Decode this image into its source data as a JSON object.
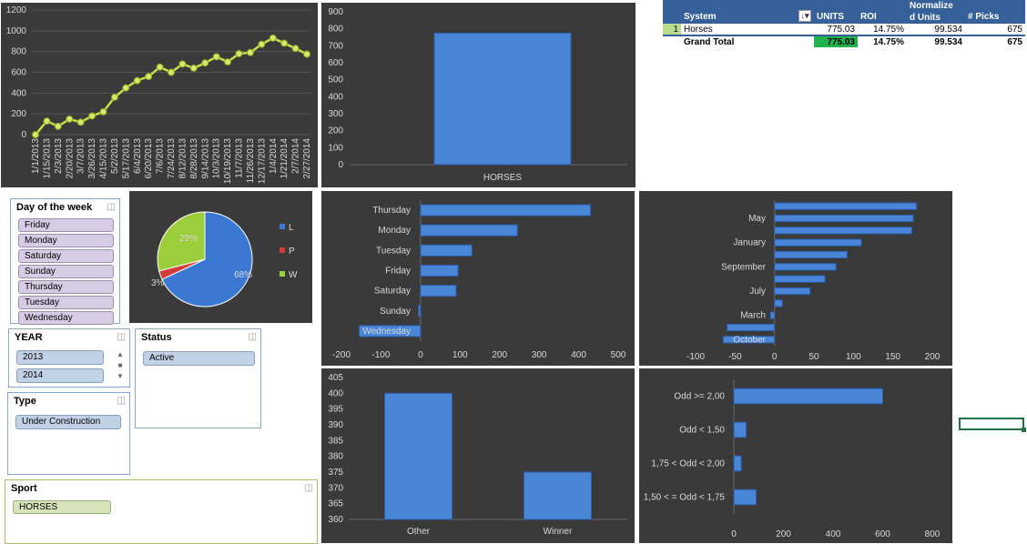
{
  "pivot": {
    "headers": {
      "system": "System",
      "units": "UNITS",
      "roi": "ROI",
      "norm_line1": "Normalize",
      "norm_line2": "d Units",
      "picks": "# Picks",
      "sort_icon": "sort-desc-icon"
    },
    "row": {
      "rank": "1",
      "system": "Horses",
      "units": "775.03",
      "roi": "14.75%",
      "norm": "99.534",
      "picks": "675"
    },
    "total": {
      "label": "Grand Total",
      "units": "775.03",
      "roi": "14.75%",
      "norm": "99.534",
      "picks": "675"
    }
  },
  "slicers": {
    "dow": {
      "title": "Day of the week",
      "items": [
        "Friday",
        "Monday",
        "Saturday",
        "Sunday",
        "Thursday",
        "Tuesday",
        "Wednesday"
      ]
    },
    "year": {
      "title": "YEAR",
      "items": [
        "2013",
        "2014"
      ]
    },
    "status": {
      "title": "Status",
      "items": [
        "Active"
      ]
    },
    "type": {
      "title": "Type",
      "items": [
        "Under Construction"
      ]
    },
    "sport": {
      "title": "Sport",
      "items": [
        "HORSES"
      ]
    }
  },
  "chart_data": [
    {
      "id": "cumulative",
      "type": "line",
      "x": [
        "1/1/2013",
        "1/15/2013",
        "2/3/2013",
        "2/20/2013",
        "3/7/2013",
        "3/26/2013",
        "4/15/2013",
        "5/2/2013",
        "5/17/2013",
        "6/4/2013",
        "6/20/2013",
        "7/6/2013",
        "7/24/2013",
        "8/12/2013",
        "8/28/2013",
        "9/14/2013",
        "10/3/2013",
        "10/19/2013",
        "11/7/2013",
        "11/26/2013",
        "12/17/2013",
        "1/4/2014",
        "1/21/2014",
        "2/7/2014",
        "2/27/2014"
      ],
      "values": [
        0,
        130,
        80,
        150,
        120,
        180,
        220,
        360,
        450,
        520,
        560,
        650,
        600,
        680,
        640,
        690,
        750,
        700,
        780,
        790,
        870,
        930,
        880,
        830,
        775
      ],
      "ylim": [
        0,
        1200
      ],
      "yticks": [
        0,
        200,
        400,
        600,
        800,
        1000,
        1200
      ]
    },
    {
      "id": "horses_bar",
      "type": "bar",
      "categories": [
        "HORSES"
      ],
      "values": [
        775.03
      ],
      "ylim": [
        0,
        900
      ],
      "yticks": [
        0,
        100,
        200,
        300,
        400,
        500,
        600,
        700,
        800,
        900
      ]
    },
    {
      "id": "result_pie",
      "type": "pie",
      "slices": [
        {
          "name": "L",
          "value": 68,
          "label": "68%",
          "color": "#3a78d2"
        },
        {
          "name": "P",
          "value": 3,
          "label": "3%",
          "color": "#d43c3c"
        },
        {
          "name": "W",
          "value": 29,
          "label": "29%",
          "color": "#9ccd3a"
        }
      ],
      "legend": "right"
    },
    {
      "id": "weekday",
      "type": "bar",
      "orientation": "horizontal",
      "categories": [
        "Thursday",
        "Monday",
        "Tuesday",
        "Friday",
        "Saturday",
        "Sunday",
        "Wednesday"
      ],
      "values": [
        430,
        245,
        130,
        95,
        90,
        -5,
        -155
      ],
      "xlim": [
        -200,
        500
      ],
      "xticks": [
        -200,
        -100,
        0,
        100,
        200,
        300,
        400,
        500
      ]
    },
    {
      "id": "month",
      "type": "bar",
      "orientation": "horizontal",
      "categories": [
        "",
        "May",
        "",
        "January",
        "",
        "September",
        "",
        "July",
        "",
        "March",
        "",
        "October"
      ],
      "values": [
        180,
        176,
        174,
        110,
        92,
        78,
        64,
        45,
        10,
        -5,
        -60,
        -65
      ],
      "xlim": [
        -100,
        200
      ],
      "xticks": [
        -100,
        -50,
        0,
        50,
        100,
        150,
        200
      ]
    },
    {
      "id": "outcome",
      "type": "bar",
      "categories": [
        "Other",
        "Winner"
      ],
      "values": [
        400,
        375
      ],
      "ylim": [
        360,
        405
      ],
      "yticks": [
        360,
        365,
        370,
        375,
        380,
        385,
        390,
        395,
        400,
        405
      ]
    },
    {
      "id": "odds",
      "type": "bar",
      "orientation": "horizontal",
      "categories": [
        "Odd >= 2,00",
        "Odd < 1,50",
        "1,75 < Odd < 2,00",
        "1,50 < = Odd < 1,75"
      ],
      "values": [
        600,
        50,
        30,
        90
      ],
      "xlim": [
        0,
        800
      ],
      "xticks": [
        0,
        200,
        400,
        600,
        800
      ]
    }
  ]
}
